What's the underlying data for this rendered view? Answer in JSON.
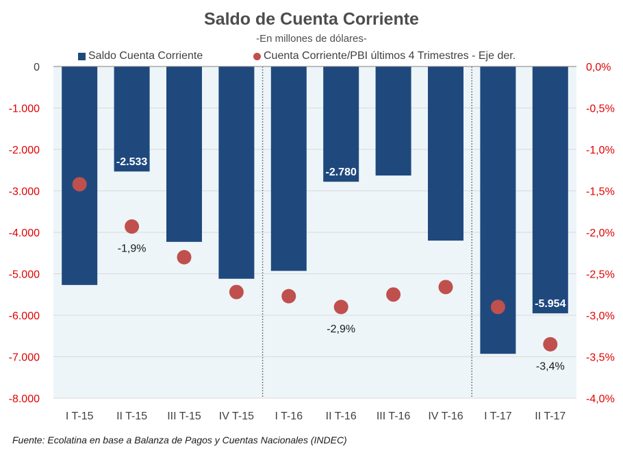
{
  "chart_data": {
    "type": "bar",
    "title": "Saldo de Cuenta Corriente",
    "subtitle": "-En millones de dólares-",
    "categories": [
      "I T-15",
      "II T-15",
      "III T-15",
      "IV T-15",
      "I T-16",
      "II T-16",
      "III T-16",
      "IV T-16",
      "I T-17",
      "II T-17"
    ],
    "series": [
      {
        "name": "Saldo Cuenta Corriente",
        "type": "bar",
        "axis": "left",
        "color": "#1f497d",
        "values": [
          -5270,
          -2533,
          -4230,
          -5120,
          -4930,
          -2780,
          -2630,
          -4200,
          -6930,
          -5954
        ],
        "data_labels": {
          "1": "-2.533",
          "5": "-2.780",
          "9": "-5.954"
        }
      },
      {
        "name": "Cuenta Corriente/PBI últimos 4 Trimestres - Eje der.",
        "type": "scatter",
        "axis": "right",
        "color": "#c0504d",
        "values": [
          -1.42,
          -1.93,
          -2.3,
          -2.72,
          -2.77,
          -2.9,
          -2.75,
          -2.66,
          -2.9,
          -3.35
        ],
        "data_labels": {
          "1": "-1,9%",
          "5": "-2,9%",
          "9": "-3,4%"
        }
      }
    ],
    "yaxis_left": {
      "range": [
        -8000,
        0
      ],
      "ticks": [
        "0",
        "-1.000",
        "-2.000",
        "-3.000",
        "-4.000",
        "-5.000",
        "-6.000",
        "-7.000",
        "-8.000"
      ],
      "tick_values": [
        0,
        -1000,
        -2000,
        -3000,
        -4000,
        -5000,
        -6000,
        -7000,
        -8000
      ]
    },
    "yaxis_right": {
      "range": [
        -4.0,
        0
      ],
      "ticks": [
        "0,0%",
        "-0,5%",
        "-1,0%",
        "-1,5%",
        "-2,0%",
        "-2,5%",
        "-3,0%",
        "-3,5%",
        "-4,0%"
      ],
      "tick_values": [
        0,
        -0.5,
        -1,
        -1.5,
        -2,
        -2.5,
        -3,
        -3.5,
        -4
      ]
    },
    "separators_after": [
      "IV T-15",
      "IV T-16"
    ],
    "grid": true,
    "legend_position": "top",
    "xlabel": "",
    "ylabel": ""
  },
  "footer": "Fuente: Ecolatina en base a Balanza de Pagos y Cuentas Nacionales (INDEC)",
  "colors": {
    "bar": "#1f497d",
    "dot": "#c0504d",
    "axis_red": "#e00000",
    "plot_bg": "#edf5f9"
  }
}
